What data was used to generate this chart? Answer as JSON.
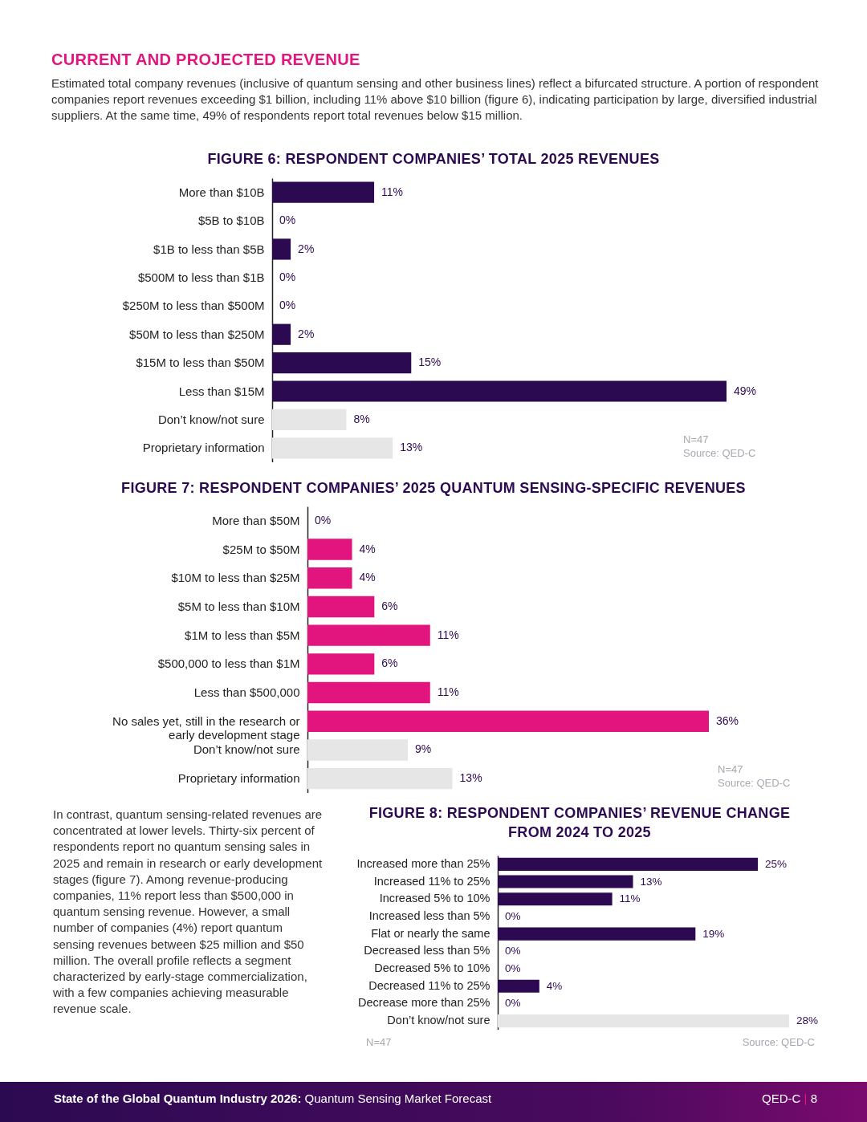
{
  "chart_data": [
    {
      "type": "bar",
      "orientation": "horizontal",
      "title": "FIGURE 6: RESPONDENT COMPANIES’ TOTAL 2025 REVENUES",
      "categories": [
        "More than $10B",
        "$5B to $10B",
        "$1B to less than $5B",
        "$500M to less than $1B",
        "$250M to less than $500M",
        "$50M to less than $250M",
        "$15M to less than $50M",
        "Less than $15M",
        "Don’t know/not sure",
        "Proprietary information"
      ],
      "values": [
        11,
        0,
        2,
        0,
        0,
        2,
        15,
        49,
        8,
        13
      ],
      "colors": [
        "#2c0a52",
        "#2c0a52",
        "#2c0a52",
        "#2c0a52",
        "#2c0a52",
        "#2c0a52",
        "#2c0a52",
        "#2c0a52",
        "#e6e6e6",
        "#e6e6e6"
      ],
      "value_labels": [
        "11%",
        "0%",
        "2%",
        "0%",
        "0%",
        "2%",
        "15%",
        "49%",
        "8%",
        "13%"
      ],
      "annotations": [
        "CURRENT AND PROJECTED REVENUE",
        "Estimated total company revenues (inclusive of quantum sensing and other business lines) reflect a bifurcated structure. A portion of respondent companies report revenues exceeding $1 billion, including 11% above $10 billion (figure 6), indicating participation by large, diversified industrial suppliers. At the same time, 49% of respondents report total revenues below $15 million.",
        "N=47",
        "Source: QED-C"
      ]
    },
    {
      "type": "bar",
      "orientation": "horizontal",
      "title": "FIGURE 7: RESPONDENT COMPANIES’ 2025 QUANTUM SENSING-SPECIFIC REVENUES",
      "categories": [
        "More than $50M",
        "$25M to $50M",
        "$10M to less than $25M",
        "$5M to less than $10M",
        "$1M to less than $5M",
        "$500,000 to less than $1M",
        "Less than $500,000",
        "No sales yet, still in the research or early development stage",
        "Don’t know/not sure",
        "Proprietary information"
      ],
      "values": [
        0,
        4,
        4,
        6,
        11,
        6,
        11,
        36,
        9,
        13
      ],
      "colors": [
        "#e2157e",
        "#e2157e",
        "#e2157e",
        "#e2157e",
        "#e2157e",
        "#e2157e",
        "#e2157e",
        "#e2157e",
        "#e6e6e6",
        "#e6e6e6"
      ],
      "value_labels": [
        "0%",
        "4%",
        "4%",
        "6%",
        "11%",
        "6%",
        "11%",
        "36%",
        "9%",
        "13%"
      ],
      "annotations": [
        "N=47",
        "Source: QED-C"
      ]
    },
    {
      "type": "bar",
      "orientation": "horizontal",
      "title": "FIGURE 8: RESPONDENT COMPANIES’ REVENUE CHANGE FROM 2024 TO 2025",
      "categories": [
        "Increased more than 25%",
        "Increased 11% to 25%",
        "Increased 5% to 10%",
        "Increased less than 5%",
        "Flat or nearly the same",
        "Decreased less than 5%",
        "Decreased 5% to 10%",
        "Decreased 11% to 25%",
        "Decrease more than 25%",
        "Don’t know/not sure"
      ],
      "values": [
        25,
        13,
        11,
        0,
        19,
        0,
        0,
        4,
        0,
        28
      ],
      "colors": [
        "#2c0a52",
        "#2c0a52",
        "#2c0a52",
        "#2c0a52",
        "#2c0a52",
        "#2c0a52",
        "#2c0a52",
        "#2c0a52",
        "#2c0a52",
        "#e6e6e6"
      ],
      "value_labels": [
        "25%",
        "13%",
        "11%",
        "0%",
        "19%",
        "0%",
        "0%",
        "4%",
        "0%",
        "28%"
      ],
      "annotations": [
        "In contrast, quantum sensing-related revenues are concentrated at lower levels. Thirty-six percent of respondents report no quantum sensing sales in 2025 and remain in research or early development stages (figure 7). Among revenue-producing companies, 11% report less than $500,000 in quantum sensing revenue. However, a small number of companies (4%) report quantum sensing revenues between $25 million and $50 million. The overall profile reflects a segment characterized by early-stage commercialization, with a few companies achieving measurable revenue scale.",
        "N=47",
        "Source: QED-C",
        "State of the Global Quantum Industry 2026: Quantum Sensing Market Forecast",
        "QED-C | 8"
      ]
    }
  ]
}
